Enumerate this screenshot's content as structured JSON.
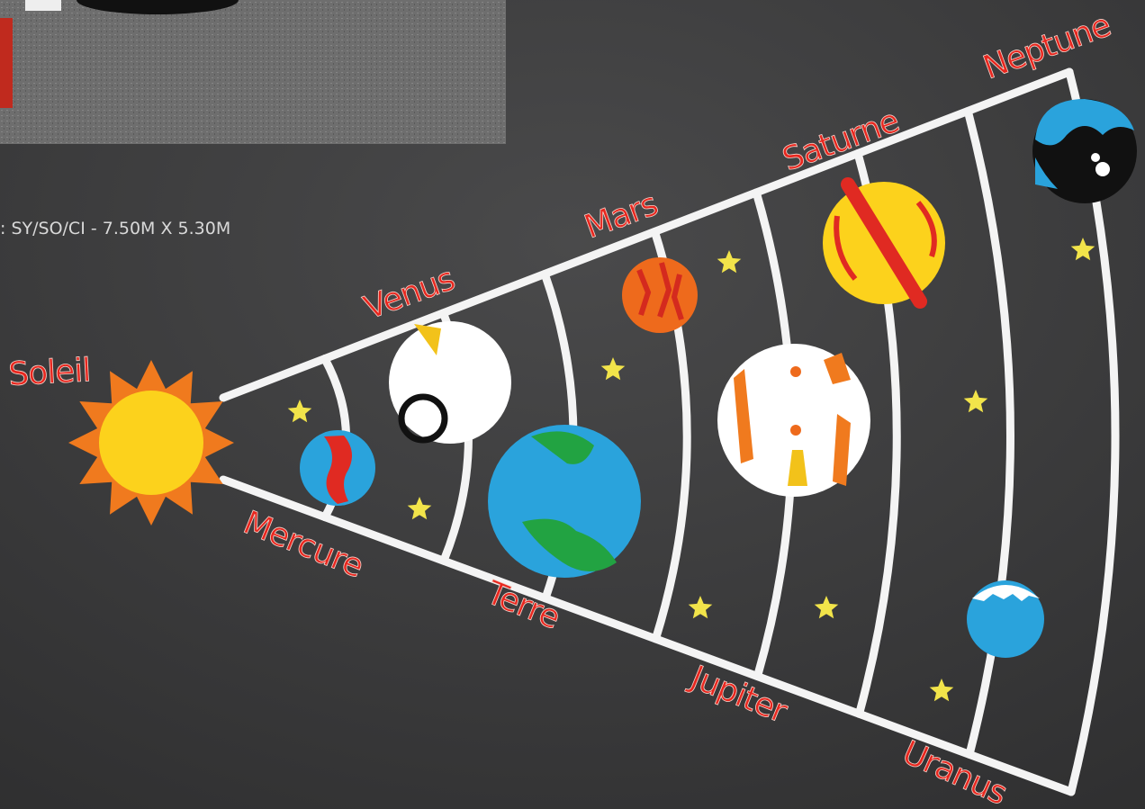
{
  "caption": ": SY/SO/CI - 7.50M X 5.30M",
  "sun": {
    "label": "Soleil"
  },
  "planets": [
    {
      "label": "Mercure"
    },
    {
      "label": "Venus"
    },
    {
      "label": "Terre"
    },
    {
      "label": "Mars"
    },
    {
      "label": "Jupiter"
    },
    {
      "label": "Saturne"
    },
    {
      "label": "Uranus"
    },
    {
      "label": "Neptune"
    }
  ]
}
